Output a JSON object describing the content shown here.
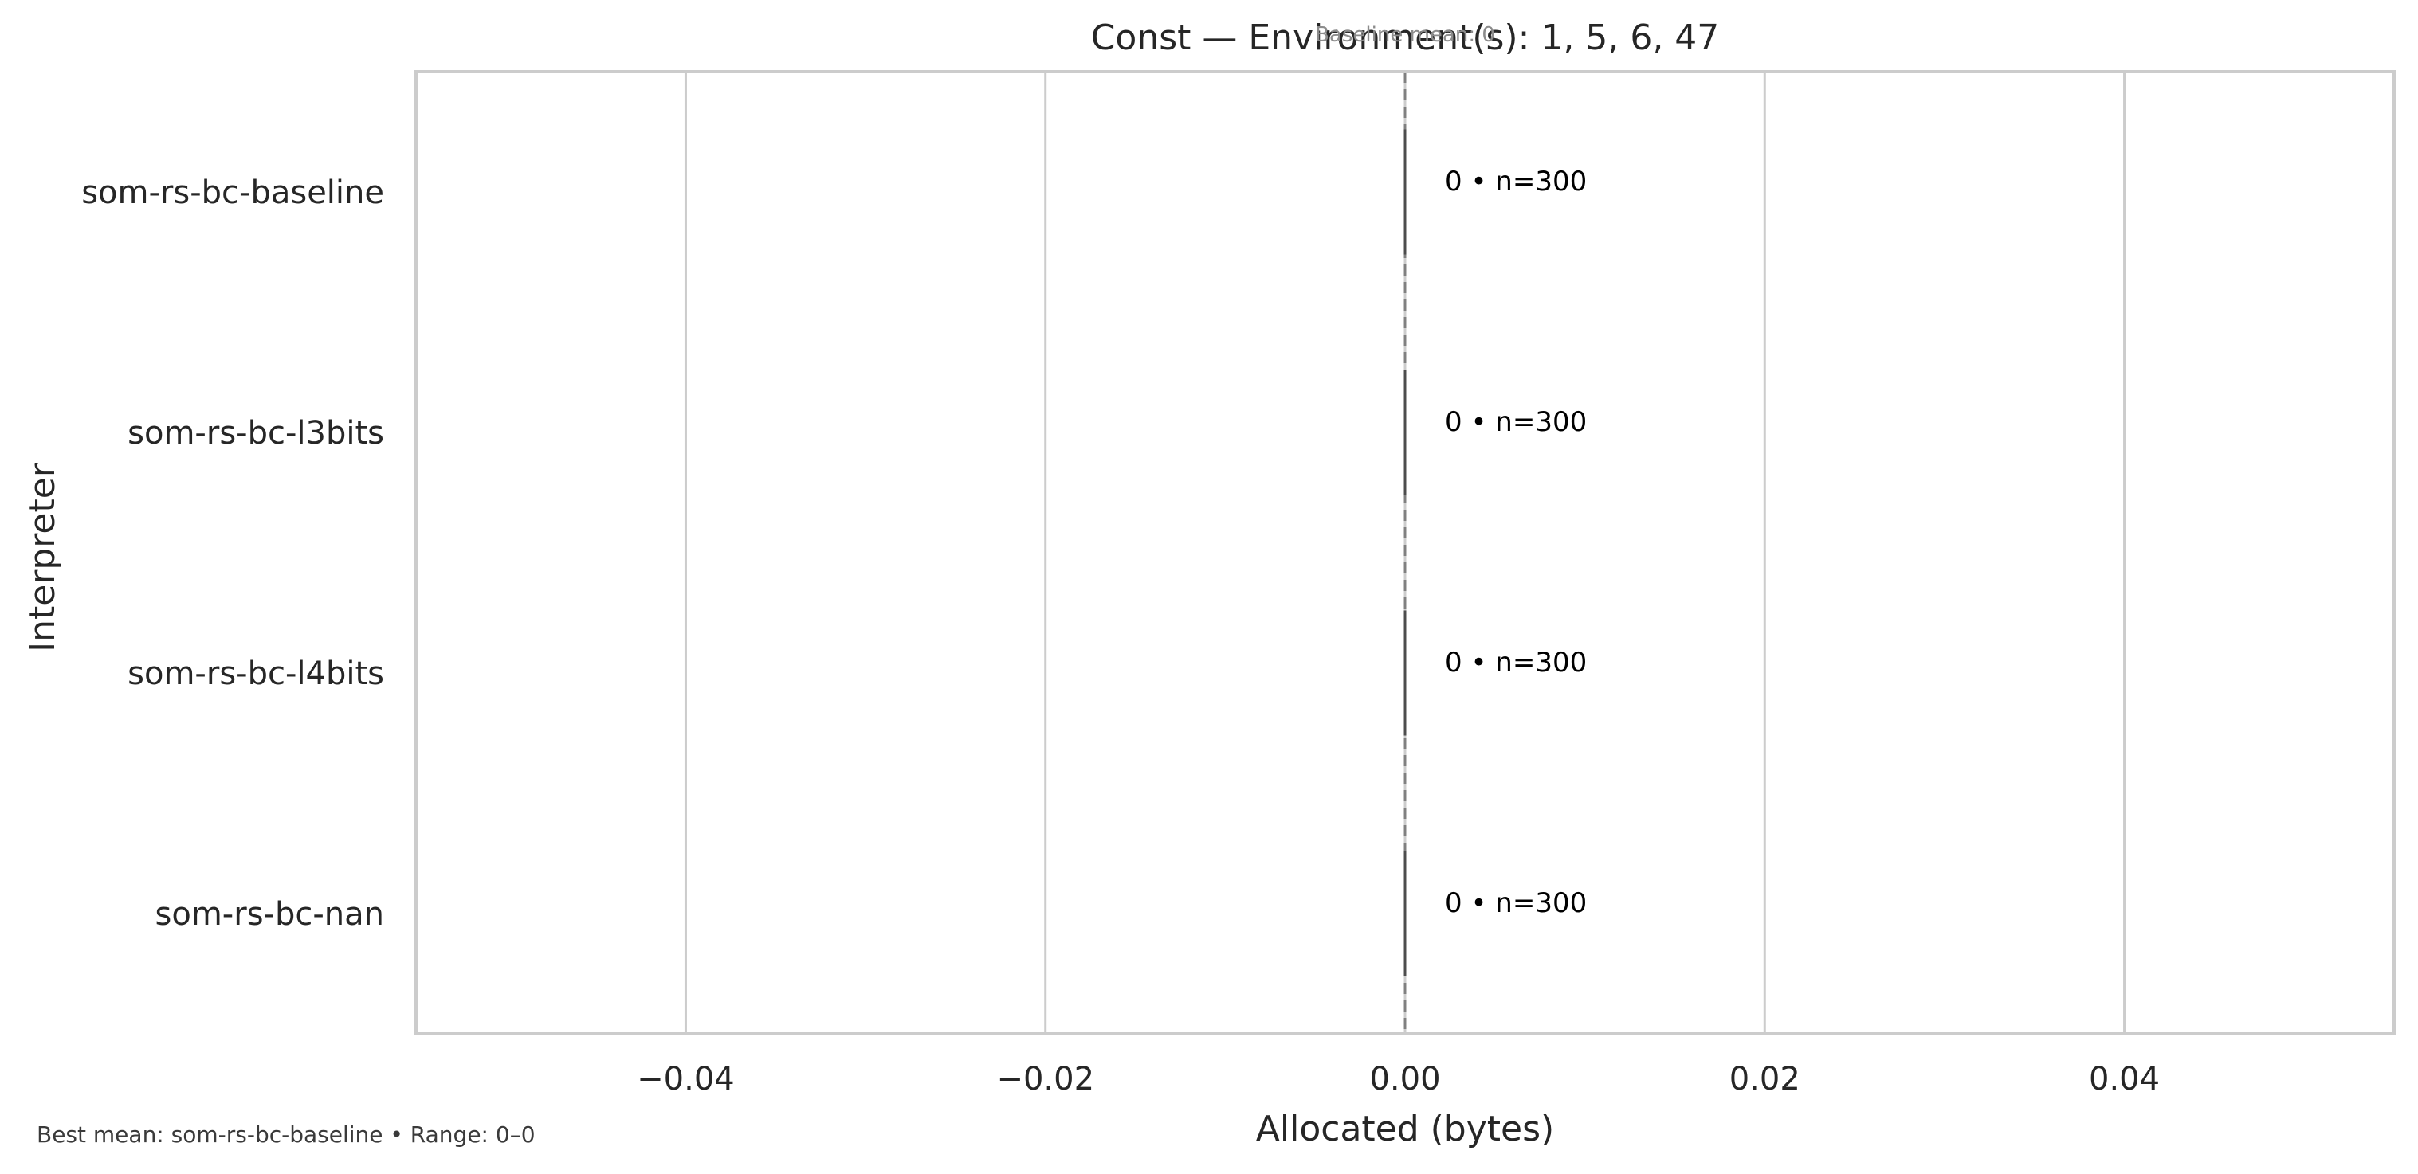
{
  "chart_data": {
    "type": "bar",
    "orientation": "horizontal",
    "title": "Const — Environment(s): 1, 5, 6, 47",
    "baseline_note": "Baseline mean: 0",
    "xlabel": "Allocated (bytes)",
    "ylabel": "Interpreter",
    "xlim": [
      -0.055,
      0.055
    ],
    "xticks": [
      -0.04,
      -0.02,
      0.0,
      0.02,
      0.04
    ],
    "xtick_labels": [
      "−0.04",
      "−0.02",
      "0.00",
      "0.02",
      "0.04"
    ],
    "grid": true,
    "baseline_value": 0,
    "categories": [
      "som-rs-bc-baseline",
      "som-rs-bc-l3bits",
      "som-rs-bc-l4bits",
      "som-rs-bc-nan"
    ],
    "values": [
      0,
      0,
      0,
      0
    ],
    "data_labels": [
      "0 • n=300",
      "0 • n=300",
      "0 • n=300",
      "0 • n=300"
    ],
    "footer": "Best mean: som-rs-bc-baseline • Range: 0–0",
    "colors": {
      "grid": "#cccccc",
      "frame": "#cccccc",
      "bar_edge": "#4d4d4d",
      "baseline": "#808080"
    }
  }
}
